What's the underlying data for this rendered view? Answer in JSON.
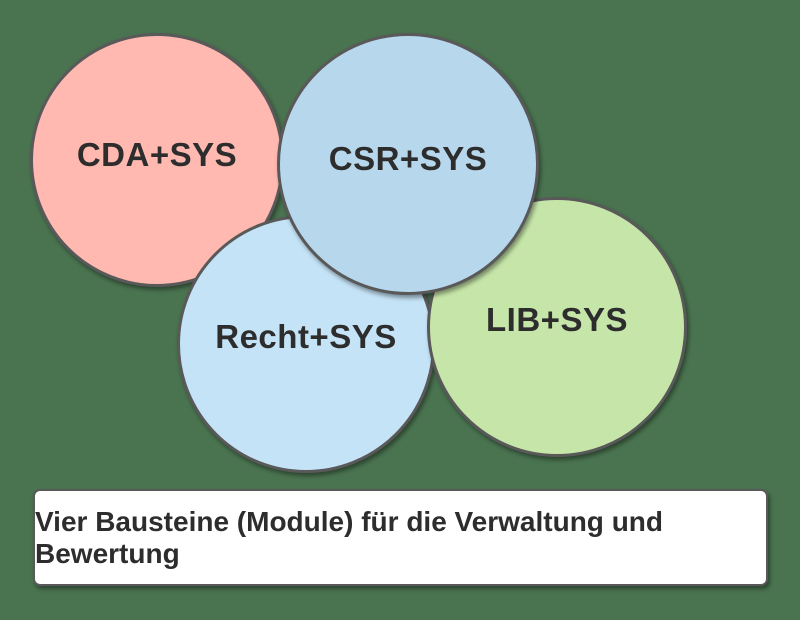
{
  "diagram": {
    "background_color": "#4a7450",
    "shape_border_color": "#595959",
    "text_color": "#2d2d2d",
    "modules": [
      {
        "id": "cda",
        "label": "CDA+SYS",
        "fill": "#ffb9b1"
      },
      {
        "id": "csr",
        "label": "CSR+SYS",
        "fill": "#b7d7ed"
      },
      {
        "id": "recht",
        "label": "Recht+SYS",
        "fill": "#c4e3f6"
      },
      {
        "id": "lib",
        "label": "LIB+SYS",
        "fill": "#c6e6a9"
      }
    ],
    "caption": {
      "text": "Vier Bausteine (Module) für die Verwaltung und Bewertung",
      "background": "#ffffff"
    }
  }
}
